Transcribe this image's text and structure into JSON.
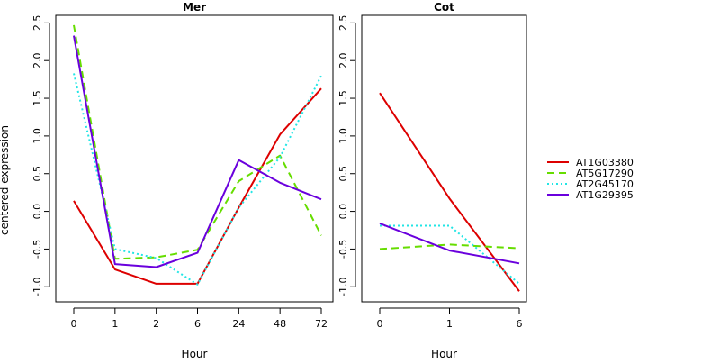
{
  "chart_data": {
    "type": "line",
    "ylabel": "centered expression",
    "legend_position": "right",
    "grid": false,
    "series": [
      {
        "name": "AT1G03380",
        "color": "#dd0000",
        "dash": "solid"
      },
      {
        "name": "AT5G17290",
        "color": "#66dd00",
        "dash": "dashed"
      },
      {
        "name": "AT2G45170",
        "color": "#22e5e5",
        "dash": "dotted"
      },
      {
        "name": "AT1G29395",
        "color": "#6a00dd",
        "dash": "solid"
      }
    ],
    "panels": [
      {
        "title": "Mer",
        "xlabel": "Hour",
        "categories": [
          "0",
          "1",
          "2",
          "6",
          "24",
          "48",
          "72"
        ],
        "ylim": [
          -1.2,
          2.6
        ],
        "yticks": [
          "-1.0",
          "-0.5",
          "0.0",
          "0.5",
          "1.0",
          "1.5",
          "2.0",
          "2.5"
        ],
        "values": {
          "AT1G03380": [
            0.14,
            -0.77,
            -0.96,
            -0.96,
            0.05,
            1.02,
            1.63
          ],
          "AT5G17290": [
            2.47,
            -0.63,
            -0.61,
            -0.51,
            0.4,
            0.74,
            -0.32
          ],
          "AT2G45170": [
            1.83,
            -0.5,
            -0.62,
            -0.97,
            0.05,
            0.72,
            1.8
          ],
          "AT1G29395": [
            2.33,
            -0.7,
            -0.74,
            -0.55,
            0.68,
            0.38,
            0.16
          ]
        }
      },
      {
        "title": "Cot",
        "xlabel": "Hour",
        "categories": [
          "0",
          "1",
          "6"
        ],
        "ylim": [
          -1.2,
          2.6
        ],
        "yticks": [
          "-1.0",
          "-0.5",
          "0.0",
          "0.5",
          "1.0",
          "1.5",
          "2.0",
          "2.5"
        ],
        "values": {
          "AT1G03380": [
            1.57,
            0.17,
            -1.06
          ],
          "AT5G17290": [
            -0.5,
            -0.44,
            -0.49
          ],
          "AT2G45170": [
            -0.19,
            -0.19,
            -0.96
          ],
          "AT1G29395": [
            -0.16,
            -0.52,
            -0.69
          ]
        }
      }
    ]
  }
}
